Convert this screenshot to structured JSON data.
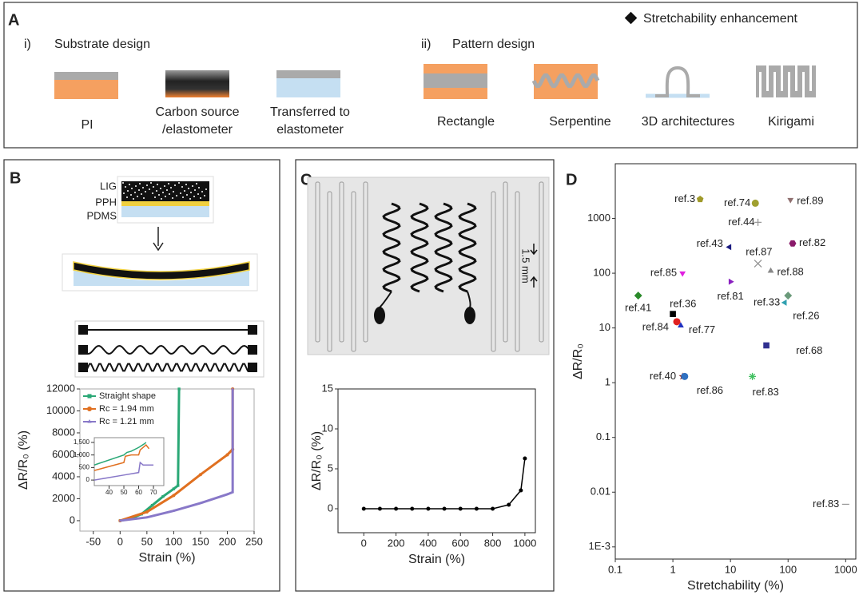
{
  "panel_a": {
    "label": "A",
    "legend": "Stretchability enhancement",
    "sections": [
      {
        "numeral": "i)",
        "title": "Substrate design",
        "items": [
          [
            "PI"
          ],
          [
            "Carbon source",
            "/elastometer"
          ],
          [
            "Transferred to",
            "elastometer"
          ]
        ]
      },
      {
        "numeral": "ii)",
        "title": "Pattern design",
        "items": [
          [
            "Rectangle"
          ],
          [
            "Serpentine"
          ],
          [
            "3D architectures"
          ],
          [
            "Kirigami"
          ]
        ]
      }
    ]
  },
  "panel_b": {
    "label": "B",
    "layers": [
      "LIG",
      "PPH",
      "PDMS"
    ]
  },
  "panel_c": {
    "label": "C",
    "scale": "1.5 mm"
  },
  "panel_d": {
    "label": "D"
  },
  "chart_data": [
    {
      "type": "line",
      "xlabel": "Strain (%)",
      "ylabel": "ΔR/R₀ (%)",
      "xlim": [
        -75,
        250
      ],
      "xticks": [
        -50,
        0,
        50,
        100,
        150,
        200,
        250
      ],
      "ylim": [
        -950,
        12000
      ],
      "yticks": [
        0,
        2000,
        4000,
        6000,
        8000,
        10000,
        12000
      ],
      "legend": "upper left",
      "series": [
        {
          "name": "Straight shape",
          "color": "#2aa876",
          "marker": "square",
          "x": [
            0,
            20,
            40,
            60,
            80,
            100,
            108,
            110
          ],
          "values": [
            0,
            200,
            600,
            1400,
            2200,
            2900,
            3200,
            12000
          ]
        },
        {
          "name": "Rc = 1.94 mm",
          "color": "#e07020",
          "marker": "circle",
          "x": [
            0,
            50,
            100,
            150,
            200,
            210,
            210
          ],
          "values": [
            0,
            800,
            2300,
            4200,
            6000,
            6500,
            12000
          ]
        },
        {
          "name": "Rc = 1.21 mm",
          "color": "#8878c8",
          "marker": "triangle-up",
          "x": [
            0,
            50,
            100,
            150,
            200,
            210,
            210
          ],
          "values": [
            0,
            300,
            900,
            1600,
            2400,
            2600,
            12000
          ]
        }
      ]
    },
    {
      "type": "line",
      "xlim": [
        30,
        77
      ],
      "xticks": [
        40,
        50,
        60,
        70
      ],
      "ylim": [
        -220,
        1690
      ],
      "yticks": [
        0,
        500,
        {
          "value": 1000,
          "label": "1,000"
        },
        {
          "value": 1500,
          "label": "1,500"
        }
      ],
      "series": [
        {
          "color": "#2aa876",
          "x": [
            30,
            50,
            52,
            55,
            60,
            64,
            65
          ],
          "values": [
            600,
            1000,
            1100,
            1150,
            1300,
            1450,
            1500
          ]
        },
        {
          "color": "#e07020",
          "x": [
            30,
            50,
            51,
            55,
            60,
            61,
            65,
            67
          ],
          "values": [
            380,
            700,
            950,
            1000,
            1000,
            1200,
            1400,
            1250
          ]
        },
        {
          "color": "#8878c8",
          "x": [
            30,
            50,
            60,
            61,
            63,
            70
          ],
          "values": [
            0,
            200,
            300,
            700,
            600,
            600
          ]
        }
      ]
    },
    {
      "type": "line",
      "xlabel": "Strain (%)",
      "ylabel": "ΔR/R₀ (%)",
      "xlim": [
        -160,
        1065
      ],
      "xticks": [
        0,
        200,
        400,
        600,
        800,
        1000
      ],
      "ylim": [
        -3,
        15
      ],
      "yticks": [
        0,
        5,
        10,
        15
      ],
      "series": [
        {
          "color": "#000000",
          "marker": "circle",
          "x": [
            0,
            100,
            200,
            300,
            400,
            500,
            600,
            700,
            800,
            900,
            975,
            1000
          ],
          "values": [
            0,
            0,
            0,
            0,
            0,
            0,
            0,
            0,
            0,
            0.5,
            2.3,
            6.3
          ]
        }
      ]
    },
    {
      "type": "scatter",
      "xlabel": "Stretchability (%)",
      "ylabel": "ΔR/R₀",
      "log_x": true,
      "log_y": true,
      "xlim": [
        0.1,
        1500
      ],
      "xticks": [
        0.1,
        1,
        10,
        100,
        1000
      ],
      "ylim": [
        0.0006,
        10000
      ],
      "yticks": [
        {
          "value": 0.001,
          "label": "1E-3"
        },
        0.01,
        0.1,
        1,
        10,
        100,
        1000
      ],
      "points": [
        {
          "label": "ref.3",
          "x": 2.97,
          "y": 2240,
          "color": "#a09a2a",
          "marker": "pentagon"
        },
        {
          "label": "ref.74",
          "x": 27,
          "y": 1900,
          "color": "#a0a030",
          "marker": "circle"
        },
        {
          "label": "ref.89",
          "x": 110,
          "y": 2200,
          "color": "#907070",
          "marker": "triangle-down"
        },
        {
          "label": "ref.44",
          "x": 30,
          "y": 850,
          "color": "#999999",
          "marker": "plus"
        },
        {
          "label": "ref.82",
          "x": 120,
          "y": 350,
          "color": "#8a1a6a",
          "marker": "hexagon"
        },
        {
          "label": "ref.43",
          "x": 9.6,
          "y": 300,
          "color": "#1a1a80",
          "marker": "triangle-left"
        },
        {
          "label": "ref.87",
          "x": 30,
          "y": 150,
          "color": "#999999",
          "marker": "cross"
        },
        {
          "label": "ref.88",
          "x": 50,
          "y": 110,
          "color": "#888888",
          "marker": "triangle-up"
        },
        {
          "label": "ref.85",
          "x": 1.47,
          "y": 100,
          "color": "#e020e0",
          "marker": "triangle-down"
        },
        {
          "label": "ref.81",
          "x": 10,
          "y": 70,
          "color": "#8a20c0",
          "marker": "triangle-right"
        },
        {
          "label": "ref.41",
          "x": 0.25,
          "y": 39,
          "color": "#2a8a2a",
          "marker": "diamond"
        },
        {
          "label": "ref.36",
          "x": 1,
          "y": 18,
          "color": "#000000",
          "marker": "square"
        },
        {
          "label": "ref.33",
          "x": 100,
          "y": 39,
          "color": "#6a9a7a",
          "marker": "diamond"
        },
        {
          "label": "ref.26",
          "x": 88,
          "y": 29,
          "color": "#30a0b0",
          "marker": "triangle-left"
        },
        {
          "label": "ref.84",
          "x": 1.17,
          "y": 13,
          "color": "#e02020",
          "marker": "circle"
        },
        {
          "label": "ref.77",
          "x": 1.37,
          "y": 11,
          "color": "#2030c0",
          "marker": "triangle-up"
        },
        {
          "label": "ref.68",
          "x": 42,
          "y": 4.8,
          "color": "#303090",
          "marker": "square"
        },
        {
          "label": "ref.40",
          "x": 1.47,
          "y": 1.3,
          "color": "#802020",
          "marker": "star"
        },
        {
          "label": "ref.86",
          "x": 1.6,
          "y": 1.3,
          "color": "#3070c0",
          "marker": "circle"
        },
        {
          "label": "ref.83",
          "x": 24,
          "y": 1.3,
          "color": "#40c060",
          "marker": "asterisk"
        },
        {
          "label": "ref.83",
          "x": 1000,
          "y": 0.006,
          "color": "#999999",
          "marker": "dash"
        }
      ]
    }
  ]
}
